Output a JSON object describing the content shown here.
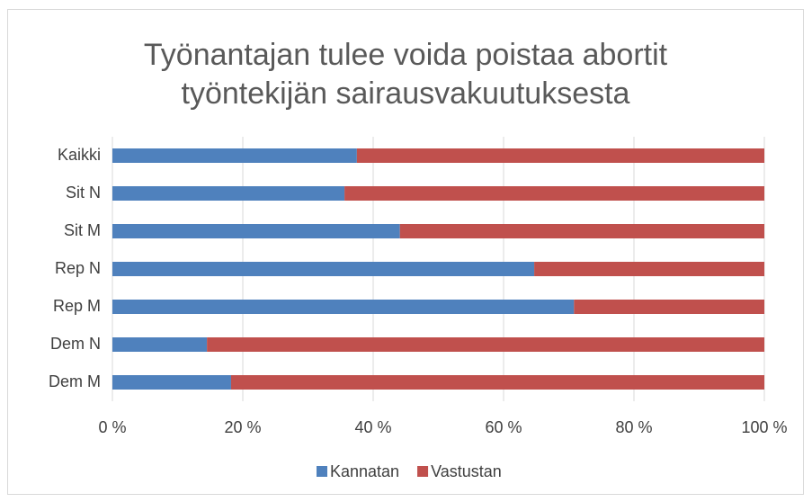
{
  "chart_data": {
    "type": "stacked-barh",
    "title": "Työnantajan tulee voida poistaa abortit työntekijän sairausvakuutuksesta",
    "categories": [
      "Kaikki",
      "Sit N",
      "Sit M",
      "Rep N",
      "Rep M",
      "Dem N",
      "Dem M"
    ],
    "series": [
      {
        "name": "Kannatan",
        "color": "#4f81bd",
        "values": [
          37.5,
          35.6,
          44.1,
          64.7,
          70.8,
          14.5,
          18.2
        ]
      },
      {
        "name": "Vastustan",
        "color": "#c0504d",
        "values": [
          62.5,
          64.4,
          55.9,
          35.3,
          29.2,
          85.5,
          81.8
        ]
      }
    ],
    "xlim": [
      0,
      100
    ],
    "xticks": [
      {
        "value": 0,
        "label": "0 %"
      },
      {
        "value": 20,
        "label": "20 %"
      },
      {
        "value": 40,
        "label": "40 %"
      },
      {
        "value": 60,
        "label": "60 %"
      },
      {
        "value": 80,
        "label": "80 %"
      },
      {
        "value": 100,
        "label": "100 %"
      }
    ],
    "grid": true,
    "legend": "bottom"
  }
}
